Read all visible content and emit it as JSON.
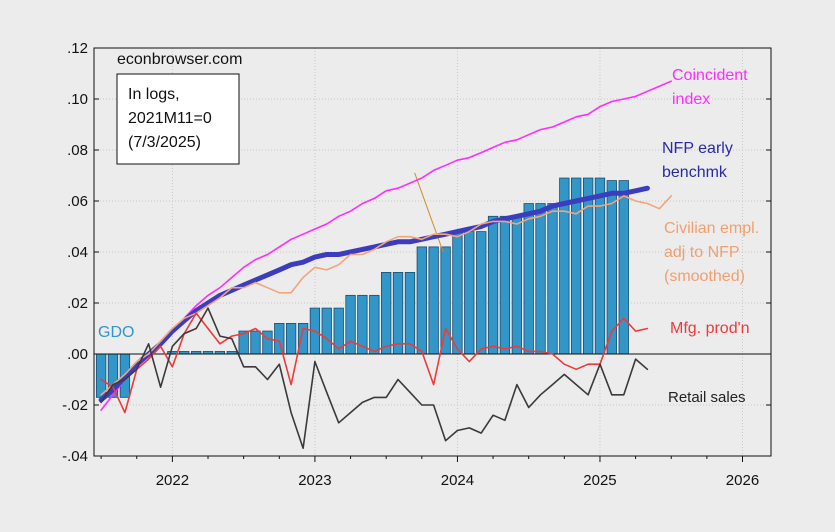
{
  "chart_data": {
    "type": "line",
    "source": "econbrowser.com",
    "note_lines": [
      "In logs,",
      "2021M11=0",
      "(7/3/2025)"
    ],
    "ylim": [
      -0.04,
      0.12
    ],
    "yticks": [
      {
        "v": 0.12,
        "label": ".12"
      },
      {
        "v": 0.1,
        "label": ".10"
      },
      {
        "v": 0.08,
        "label": ".08"
      },
      {
        "v": 0.06,
        "label": ".06"
      },
      {
        "v": 0.04,
        "label": ".04"
      },
      {
        "v": 0.02,
        "label": ".02"
      },
      {
        "v": 0.0,
        "label": ".00"
      },
      {
        "v": -0.02,
        "label": "-.02"
      },
      {
        "v": -0.04,
        "label": "-.04"
      }
    ],
    "xlim": [
      2021.45,
      2026.2
    ],
    "xticks": [
      {
        "v": 2022.0,
        "label": "2022"
      },
      {
        "v": 2023.0,
        "label": "2023"
      },
      {
        "v": 2024.0,
        "label": "2024"
      },
      {
        "v": 2025.0,
        "label": "2025"
      },
      {
        "v": 2026.0,
        "label": "2026"
      }
    ],
    "colors": {
      "gdo": "#3296c8",
      "coincident": "#ff2cff",
      "nfp": "#3c3cbe",
      "civilian": "#f5a478",
      "mfg": "#ee3a3a",
      "retail": "#3a3a3a",
      "background": "#ececec",
      "grid": "#c8c8c8"
    },
    "labels": {
      "gdo": "GDO",
      "coincident": [
        "Coincident",
        "index"
      ],
      "nfp": [
        "NFP early",
        "benchmk"
      ],
      "civilian": [
        "Civilian empl.",
        "adj to NFP",
        "(smoothed)"
      ],
      "mfg": "Mfg. prod'n",
      "retail": "Retail sales"
    },
    "gdo_bars": [
      {
        "x": 2021.5,
        "v": -0.017
      },
      {
        "x": 2021.583,
        "v": -0.017
      },
      {
        "x": 2021.667,
        "v": -0.017
      },
      {
        "x": 2022.0,
        "v": 0.001
      },
      {
        "x": 2022.083,
        "v": 0.001
      },
      {
        "x": 2022.167,
        "v": 0.001
      },
      {
        "x": 2022.25,
        "v": 0.001
      },
      {
        "x": 2022.333,
        "v": 0.001
      },
      {
        "x": 2022.417,
        "v": 0.001
      },
      {
        "x": 2022.5,
        "v": 0.009
      },
      {
        "x": 2022.583,
        "v": 0.009
      },
      {
        "x": 2022.667,
        "v": 0.009
      },
      {
        "x": 2022.75,
        "v": 0.012
      },
      {
        "x": 2022.833,
        "v": 0.012
      },
      {
        "x": 2022.917,
        "v": 0.012
      },
      {
        "x": 2023.0,
        "v": 0.018
      },
      {
        "x": 2023.083,
        "v": 0.018
      },
      {
        "x": 2023.167,
        "v": 0.018
      },
      {
        "x": 2023.25,
        "v": 0.023
      },
      {
        "x": 2023.333,
        "v": 0.023
      },
      {
        "x": 2023.417,
        "v": 0.023
      },
      {
        "x": 2023.5,
        "v": 0.032
      },
      {
        "x": 2023.583,
        "v": 0.032
      },
      {
        "x": 2023.667,
        "v": 0.032
      },
      {
        "x": 2023.75,
        "v": 0.042
      },
      {
        "x": 2023.833,
        "v": 0.042
      },
      {
        "x": 2023.917,
        "v": 0.042
      },
      {
        "x": 2024.0,
        "v": 0.048
      },
      {
        "x": 2024.083,
        "v": 0.048
      },
      {
        "x": 2024.167,
        "v": 0.048
      },
      {
        "x": 2024.25,
        "v": 0.054
      },
      {
        "x": 2024.333,
        "v": 0.054
      },
      {
        "x": 2024.417,
        "v": 0.054
      },
      {
        "x": 2024.5,
        "v": 0.059
      },
      {
        "x": 2024.583,
        "v": 0.059
      },
      {
        "x": 2024.667,
        "v": 0.059
      },
      {
        "x": 2024.75,
        "v": 0.069
      },
      {
        "x": 2024.833,
        "v": 0.069
      },
      {
        "x": 2024.917,
        "v": 0.069
      },
      {
        "x": 2025.0,
        "v": 0.069
      },
      {
        "x": 2025.083,
        "v": 0.068
      },
      {
        "x": 2025.167,
        "v": 0.068
      }
    ],
    "series": [
      {
        "key": "coincident",
        "x": [
          2021.5,
          2021.583,
          2021.667,
          2021.75,
          2021.833,
          2021.917,
          2022.0,
          2022.083,
          2022.167,
          2022.25,
          2022.333,
          2022.417,
          2022.5,
          2022.583,
          2022.667,
          2022.75,
          2022.833,
          2022.917,
          2023.0,
          2023.083,
          2023.167,
          2023.25,
          2023.333,
          2023.417,
          2023.5,
          2023.583,
          2023.667,
          2023.75,
          2023.833,
          2023.917,
          2024.0,
          2024.083,
          2024.167,
          2024.25,
          2024.333,
          2024.417,
          2024.5,
          2024.583,
          2024.667,
          2024.75,
          2024.833,
          2024.917,
          2025.0,
          2025.083,
          2025.167,
          2025.25,
          2025.333,
          2025.417,
          2025.5
        ],
        "values": [
          -0.022,
          -0.016,
          -0.01,
          -0.005,
          -0.001,
          0.004,
          0.009,
          0.014,
          0.019,
          0.023,
          0.026,
          0.03,
          0.034,
          0.037,
          0.039,
          0.042,
          0.045,
          0.047,
          0.049,
          0.051,
          0.054,
          0.056,
          0.059,
          0.061,
          0.064,
          0.065,
          0.067,
          0.069,
          0.072,
          0.074,
          0.076,
          0.077,
          0.079,
          0.081,
          0.083,
          0.084,
          0.086,
          0.088,
          0.089,
          0.091,
          0.093,
          0.094,
          0.097,
          0.099,
          0.1,
          0.101,
          0.103,
          0.105,
          0.107
        ]
      },
      {
        "key": "nfp",
        "x": [
          2021.5,
          2021.583,
          2021.667,
          2021.75,
          2021.833,
          2021.917,
          2022.0,
          2022.083,
          2022.167,
          2022.25,
          2022.333,
          2022.417,
          2022.5,
          2022.583,
          2022.667,
          2022.75,
          2022.833,
          2022.917,
          2023.0,
          2023.083,
          2023.167,
          2023.25,
          2023.333,
          2023.417,
          2023.5,
          2023.583,
          2023.667,
          2023.75,
          2023.833,
          2023.917,
          2024.0,
          2024.083,
          2024.167,
          2024.25,
          2024.333,
          2024.417,
          2024.5,
          2024.583,
          2024.667,
          2024.75,
          2024.833,
          2024.917,
          2025.0,
          2025.083,
          2025.167,
          2025.25,
          2025.333
        ],
        "values": [
          -0.018,
          -0.014,
          -0.009,
          -0.004,
          0.0,
          0.004,
          0.009,
          0.013,
          0.017,
          0.02,
          0.023,
          0.025,
          0.027,
          0.029,
          0.031,
          0.033,
          0.035,
          0.036,
          0.038,
          0.039,
          0.039,
          0.04,
          0.041,
          0.042,
          0.043,
          0.044,
          0.044,
          0.045,
          0.046,
          0.047,
          0.048,
          0.049,
          0.05,
          0.052,
          0.053,
          0.054,
          0.055,
          0.056,
          0.058,
          0.059,
          0.06,
          0.061,
          0.062,
          0.063,
          0.063,
          0.064,
          0.065
        ]
      },
      {
        "key": "civilian",
        "x": [
          2021.5,
          2021.583,
          2021.667,
          2021.75,
          2021.833,
          2021.917,
          2022.0,
          2022.083,
          2022.167,
          2022.25,
          2022.333,
          2022.417,
          2022.5,
          2022.583,
          2022.667,
          2022.75,
          2022.833,
          2022.917,
          2023.0,
          2023.083,
          2023.167,
          2023.25,
          2023.333,
          2023.417,
          2023.5,
          2023.583,
          2023.667,
          2023.75,
          2023.833,
          2023.917,
          2024.0,
          2024.083,
          2024.167,
          2024.25,
          2024.333,
          2024.417,
          2024.5,
          2024.583,
          2024.667,
          2024.75,
          2024.833,
          2024.917,
          2025.0,
          2025.083,
          2025.167,
          2025.25,
          2025.333,
          2025.417,
          2025.5
        ],
        "values": [
          -0.016,
          -0.012,
          -0.008,
          -0.003,
          0.0,
          0.005,
          0.01,
          0.014,
          0.016,
          0.019,
          0.022,
          0.026,
          0.026,
          0.028,
          0.026,
          0.024,
          0.024,
          0.03,
          0.034,
          0.033,
          0.035,
          0.039,
          0.039,
          0.041,
          0.044,
          0.046,
          0.046,
          0.045,
          0.047,
          0.047,
          0.046,
          0.048,
          0.051,
          0.052,
          0.052,
          0.051,
          0.053,
          0.054,
          0.056,
          0.056,
          0.055,
          0.058,
          0.058,
          0.059,
          0.062,
          0.06,
          0.059,
          0.057,
          0.062
        ]
      },
      {
        "key": "mfg",
        "x": [
          2021.5,
          2021.583,
          2021.667,
          2021.75,
          2021.833,
          2021.917,
          2022.0,
          2022.083,
          2022.167,
          2022.25,
          2022.333,
          2022.417,
          2022.5,
          2022.583,
          2022.667,
          2022.75,
          2022.833,
          2022.917,
          2023.0,
          2023.083,
          2023.167,
          2023.25,
          2023.333,
          2023.417,
          2023.5,
          2023.583,
          2023.667,
          2023.75,
          2023.833,
          2023.917,
          2024.0,
          2024.083,
          2024.167,
          2024.25,
          2024.333,
          2024.417,
          2024.5,
          2024.583,
          2024.667,
          2024.75,
          2024.833,
          2024.917,
          2025.0,
          2025.083,
          2025.167,
          2025.25,
          2025.333
        ],
        "values": [
          -0.01,
          -0.013,
          -0.023,
          -0.006,
          -0.002,
          0.003,
          -0.005,
          0.008,
          0.016,
          0.01,
          0.004,
          0.007,
          0.008,
          0.01,
          0.006,
          0.005,
          -0.012,
          0.01,
          0.009,
          0.006,
          0.002,
          0.005,
          0.003,
          0.001,
          0.003,
          0.004,
          0.004,
          0.001,
          -0.012,
          0.01,
          0.002,
          -0.003,
          0.002,
          0.003,
          0.002,
          0.003,
          0.001,
          0.001,
          0.0,
          -0.004,
          -0.006,
          -0.004,
          -0.004,
          0.009,
          0.014,
          0.009,
          0.01
        ]
      },
      {
        "key": "retail",
        "x": [
          2021.5,
          2021.583,
          2021.667,
          2021.75,
          2021.833,
          2021.917,
          2022.0,
          2022.083,
          2022.167,
          2022.25,
          2022.333,
          2022.417,
          2022.5,
          2022.583,
          2022.667,
          2022.75,
          2022.833,
          2022.917,
          2023.0,
          2023.083,
          2023.167,
          2023.25,
          2023.333,
          2023.417,
          2023.5,
          2023.583,
          2023.667,
          2023.75,
          2023.833,
          2023.917,
          2024.0,
          2024.083,
          2024.167,
          2024.25,
          2024.333,
          2024.417,
          2024.5,
          2024.583,
          2024.667,
          2024.75,
          2024.833,
          2024.917,
          2025.0,
          2025.083,
          2025.167,
          2025.25,
          2025.333
        ],
        "values": [
          -0.019,
          -0.012,
          -0.01,
          -0.006,
          0.004,
          -0.013,
          0.003,
          0.008,
          0.01,
          0.018,
          0.007,
          0.006,
          -0.005,
          -0.005,
          -0.01,
          -0.004,
          -0.023,
          -0.037,
          -0.003,
          -0.015,
          -0.027,
          -0.023,
          -0.019,
          -0.017,
          -0.017,
          -0.01,
          -0.015,
          -0.02,
          -0.02,
          -0.034,
          -0.03,
          -0.029,
          -0.031,
          -0.024,
          -0.026,
          -0.012,
          -0.021,
          -0.016,
          -0.012,
          -0.008,
          -0.012,
          -0.016,
          -0.004,
          -0.016,
          -0.016,
          -0.002,
          -0.006
        ]
      }
    ],
    "annotation": {
      "x1": 2023.7,
      "y1": 0.071,
      "x2": 2023.9,
      "y2": 0.04
    }
  }
}
